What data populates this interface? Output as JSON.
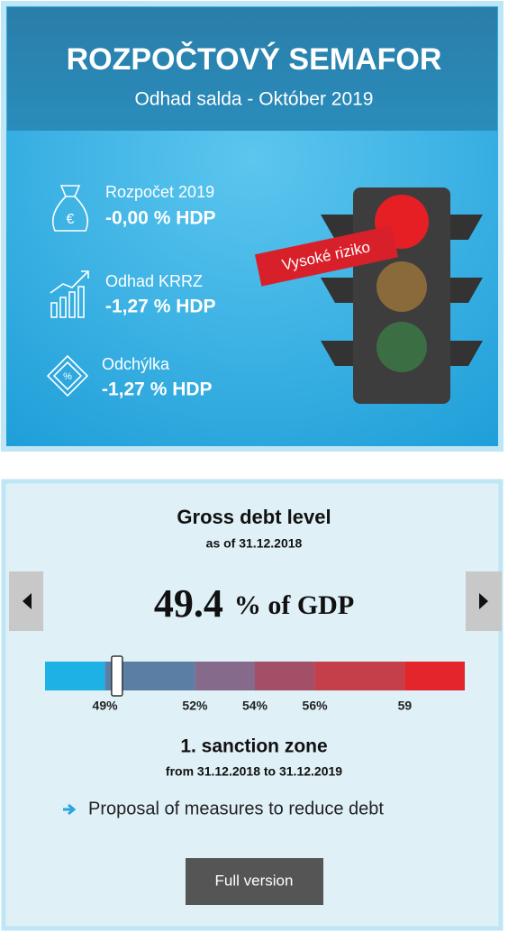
{
  "header": {
    "title": "ROZPOČTOVÝ SEMAFOR",
    "subtitle": "Odhad salda - Október 2019"
  },
  "items": [
    {
      "label": "Rozpočet 2019",
      "value": "-0,00 % HDP"
    },
    {
      "label": "Odhad KRRZ",
      "value": "-1,27 % HDP"
    },
    {
      "label": "Odchýlka",
      "value": "-1,27 % HDP"
    }
  ],
  "risk_badge": "Vysoké riziko",
  "debt": {
    "title": "Gross debt level",
    "as_of": "as of 31.12.2018",
    "value": 49.4,
    "unit": "% of GDP",
    "gauge": {
      "min": 47,
      "max": 61,
      "ticks": [
        {
          "value": 49,
          "label": "49%"
        },
        {
          "value": 52,
          "label": "52%"
        },
        {
          "value": 54,
          "label": "54%"
        },
        {
          "value": 56,
          "label": "56%"
        },
        59
      ],
      "colors": [
        "#1eb1e6",
        "#5b7fa4",
        "#866a8c",
        "#a34f67",
        "#c53f4a",
        "#e2262b"
      ]
    },
    "zone": "1. sanction zone",
    "zone_period": "from 31.12.2018 to 31.12.2019",
    "measure": "Proposal of measures to reduce debt",
    "button": "Full version"
  }
}
